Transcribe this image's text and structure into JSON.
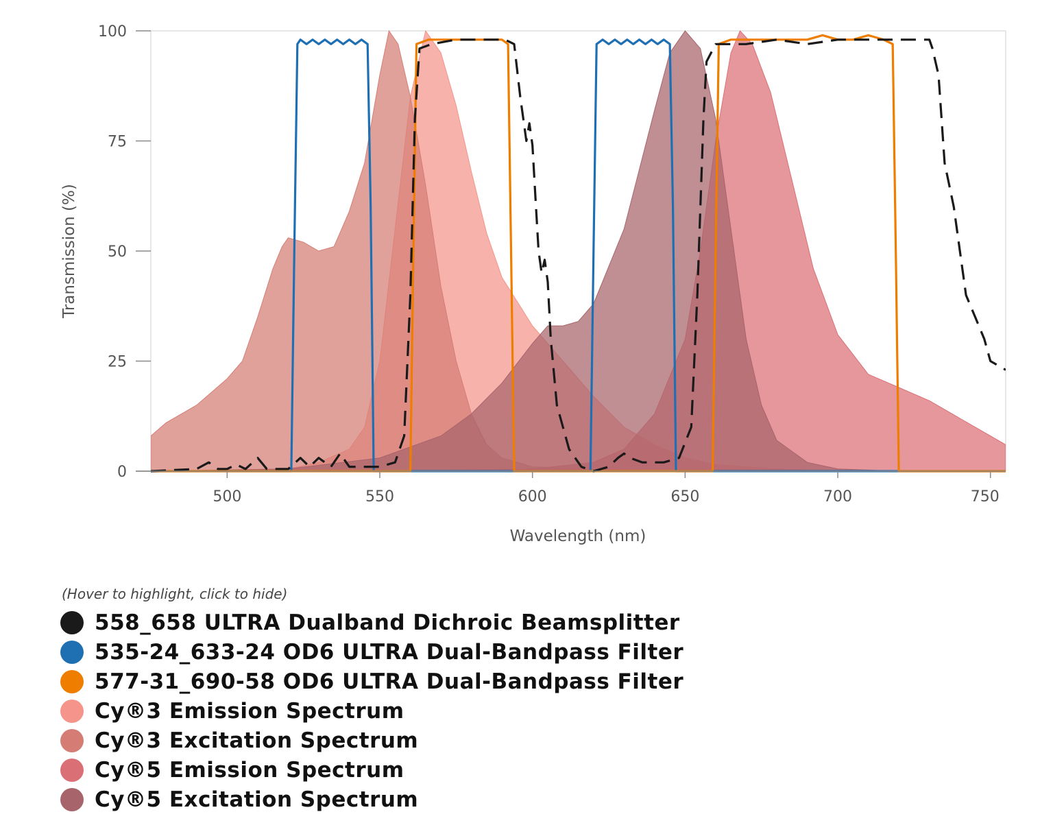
{
  "chart_data": {
    "type": "area",
    "xlabel": "Wavelength (nm)",
    "ylabel": "Transmission (%)",
    "xlim": [
      475,
      755
    ],
    "ylim": [
      0,
      100
    ],
    "xticks": [
      500,
      550,
      600,
      650,
      700,
      750
    ],
    "yticks": [
      0,
      25,
      50,
      75,
      100
    ],
    "legend_hint": "(Hover to highlight, click to hide)",
    "series": [
      {
        "name": "558_658 ULTRA Dualband Dichroic Beamsplitter",
        "color": "#1a1a1a",
        "style": "dashed",
        "kind": "line",
        "points": [
          [
            475,
            0
          ],
          [
            490,
            0.5
          ],
          [
            494,
            2
          ],
          [
            497,
            0.5
          ],
          [
            500,
            0.5
          ],
          [
            503,
            1.5
          ],
          [
            506,
            0.5
          ],
          [
            510,
            3
          ],
          [
            513,
            0.5
          ],
          [
            520,
            0.5
          ],
          [
            524,
            3
          ],
          [
            527,
            1
          ],
          [
            530,
            3
          ],
          [
            534,
            1
          ],
          [
            537,
            4
          ],
          [
            540,
            1
          ],
          [
            550,
            1
          ],
          [
            555,
            2
          ],
          [
            558,
            8
          ],
          [
            560,
            40
          ],
          [
            561.5,
            80
          ],
          [
            563,
            96
          ],
          [
            567,
            97
          ],
          [
            575,
            98
          ],
          [
            585,
            98
          ],
          [
            591,
            98
          ],
          [
            594,
            97
          ],
          [
            596,
            85
          ],
          [
            598,
            75
          ],
          [
            599,
            79
          ],
          [
            600,
            74
          ],
          [
            601,
            62
          ],
          [
            602,
            50
          ],
          [
            603,
            45
          ],
          [
            604,
            48
          ],
          [
            605,
            43
          ],
          [
            606,
            30
          ],
          [
            608,
            15
          ],
          [
            612,
            5
          ],
          [
            616,
            1
          ],
          [
            620,
            0
          ],
          [
            625,
            1
          ],
          [
            628,
            3
          ],
          [
            630,
            4
          ],
          [
            632,
            3
          ],
          [
            636,
            2
          ],
          [
            643,
            2
          ],
          [
            648,
            3
          ],
          [
            652,
            10
          ],
          [
            654,
            40
          ],
          [
            656,
            80
          ],
          [
            657,
            93
          ],
          [
            660,
            97
          ],
          [
            670,
            97
          ],
          [
            680,
            98
          ],
          [
            690,
            97
          ],
          [
            700,
            98
          ],
          [
            710,
            98
          ],
          [
            720,
            98
          ],
          [
            730,
            98
          ],
          [
            731,
            96
          ],
          [
            733,
            90
          ],
          [
            735,
            70
          ],
          [
            738,
            60
          ],
          [
            740,
            50
          ],
          [
            742,
            40
          ],
          [
            745,
            35
          ],
          [
            748,
            30
          ],
          [
            750,
            25
          ],
          [
            755,
            23
          ]
        ]
      },
      {
        "name": "535-24_633-24 OD6 ULTRA Dual-Bandpass Filter",
        "color": "#1f6fb3",
        "style": "solid",
        "kind": "line",
        "points": [
          [
            475,
            0
          ],
          [
            521,
            0
          ],
          [
            522,
            50
          ],
          [
            523,
            97
          ],
          [
            524,
            98
          ],
          [
            526,
            97
          ],
          [
            528,
            98
          ],
          [
            530,
            97
          ],
          [
            532,
            98
          ],
          [
            534,
            97
          ],
          [
            536,
            98
          ],
          [
            538,
            97
          ],
          [
            540,
            98
          ],
          [
            542,
            97
          ],
          [
            544,
            98
          ],
          [
            546,
            97
          ],
          [
            547,
            60
          ],
          [
            548,
            0
          ],
          [
            619,
            0
          ],
          [
            620,
            50
          ],
          [
            621,
            97
          ],
          [
            623,
            98
          ],
          [
            625,
            97
          ],
          [
            627,
            98
          ],
          [
            629,
            97
          ],
          [
            631,
            98
          ],
          [
            633,
            97
          ],
          [
            635,
            98
          ],
          [
            637,
            97
          ],
          [
            639,
            98
          ],
          [
            641,
            97
          ],
          [
            643,
            98
          ],
          [
            645,
            97
          ],
          [
            646,
            60
          ],
          [
            647,
            0
          ],
          [
            755,
            0
          ]
        ]
      },
      {
        "name": "577-31_690-58 OD6 ULTRA Dual-Bandpass Filter",
        "color": "#ef7d00",
        "style": "solid",
        "kind": "line",
        "points": [
          [
            475,
            0
          ],
          [
            560,
            0
          ],
          [
            561,
            50
          ],
          [
            562,
            97
          ],
          [
            566,
            98
          ],
          [
            570,
            98
          ],
          [
            575,
            98
          ],
          [
            580,
            98
          ],
          [
            585,
            98
          ],
          [
            590,
            98
          ],
          [
            592,
            97
          ],
          [
            593,
            50
          ],
          [
            594,
            0
          ],
          [
            659,
            0
          ],
          [
            660,
            50
          ],
          [
            661,
            97
          ],
          [
            665,
            98
          ],
          [
            670,
            98
          ],
          [
            675,
            98
          ],
          [
            680,
            98
          ],
          [
            685,
            98
          ],
          [
            690,
            98
          ],
          [
            695,
            99
          ],
          [
            700,
            98
          ],
          [
            705,
            98
          ],
          [
            710,
            99
          ],
          [
            715,
            98
          ],
          [
            718,
            97
          ],
          [
            719,
            50
          ],
          [
            720,
            0
          ],
          [
            755,
            0
          ]
        ]
      },
      {
        "name": "Cy®3 Emission Spectrum",
        "color": "#f4948a",
        "style": "filled",
        "kind": "area",
        "points": [
          [
            475,
            0
          ],
          [
            520,
            0.5
          ],
          [
            530,
            2
          ],
          [
            540,
            5
          ],
          [
            545,
            10
          ],
          [
            550,
            25
          ],
          [
            555,
            55
          ],
          [
            560,
            85
          ],
          [
            565,
            100
          ],
          [
            570,
            95
          ],
          [
            575,
            83
          ],
          [
            580,
            68
          ],
          [
            585,
            54
          ],
          [
            590,
            44
          ],
          [
            600,
            33
          ],
          [
            610,
            25
          ],
          [
            620,
            17
          ],
          [
            630,
            10
          ],
          [
            640,
            6
          ],
          [
            650,
            3
          ],
          [
            660,
            1.5
          ],
          [
            680,
            0.5
          ],
          [
            700,
            0
          ],
          [
            755,
            0
          ]
        ]
      },
      {
        "name": "Cy®3 Excitation Spectrum",
        "color": "#d57d74",
        "style": "filled",
        "kind": "area",
        "points": [
          [
            475,
            8
          ],
          [
            480,
            11
          ],
          [
            490,
            15
          ],
          [
            500,
            21
          ],
          [
            505,
            25
          ],
          [
            510,
            35
          ],
          [
            515,
            46
          ],
          [
            518,
            51
          ],
          [
            520,
            53
          ],
          [
            525,
            52
          ],
          [
            530,
            50
          ],
          [
            535,
            51
          ],
          [
            540,
            59
          ],
          [
            545,
            70
          ],
          [
            550,
            90
          ],
          [
            553,
            100
          ],
          [
            556,
            97
          ],
          [
            560,
            85
          ],
          [
            565,
            65
          ],
          [
            570,
            42
          ],
          [
            575,
            25
          ],
          [
            580,
            13
          ],
          [
            585,
            6
          ],
          [
            590,
            3
          ],
          [
            600,
            1
          ],
          [
            620,
            0.5
          ],
          [
            650,
            0
          ],
          [
            755,
            0
          ]
        ]
      },
      {
        "name": "Cy®5 Emission Spectrum",
        "color": "#db6f76",
        "style": "filled",
        "kind": "area",
        "points": [
          [
            475,
            0
          ],
          [
            560,
            0
          ],
          [
            600,
            0.5
          ],
          [
            620,
            2
          ],
          [
            630,
            5
          ],
          [
            640,
            13
          ],
          [
            650,
            30
          ],
          [
            655,
            50
          ],
          [
            660,
            75
          ],
          [
            665,
            95
          ],
          [
            668,
            100
          ],
          [
            672,
            97
          ],
          [
            678,
            86
          ],
          [
            685,
            66
          ],
          [
            692,
            46
          ],
          [
            700,
            31
          ],
          [
            710,
            22
          ],
          [
            720,
            19
          ],
          [
            730,
            16
          ],
          [
            740,
            12
          ],
          [
            750,
            8
          ],
          [
            755,
            6
          ]
        ]
      },
      {
        "name": "Cy®5 Excitation Spectrum",
        "color": "#a8646b",
        "style": "filled",
        "kind": "area",
        "points": [
          [
            475,
            0
          ],
          [
            520,
            0.5
          ],
          [
            550,
            3
          ],
          [
            570,
            8
          ],
          [
            580,
            13
          ],
          [
            590,
            20
          ],
          [
            600,
            29
          ],
          [
            605,
            33
          ],
          [
            610,
            33
          ],
          [
            615,
            34
          ],
          [
            620,
            38
          ],
          [
            630,
            55
          ],
          [
            640,
            82
          ],
          [
            645,
            95
          ],
          [
            650,
            100
          ],
          [
            655,
            96
          ],
          [
            660,
            80
          ],
          [
            665,
            55
          ],
          [
            670,
            30
          ],
          [
            675,
            15
          ],
          [
            680,
            7
          ],
          [
            690,
            2
          ],
          [
            700,
            0.5
          ],
          [
            720,
            0
          ],
          [
            755,
            0
          ]
        ]
      }
    ]
  }
}
